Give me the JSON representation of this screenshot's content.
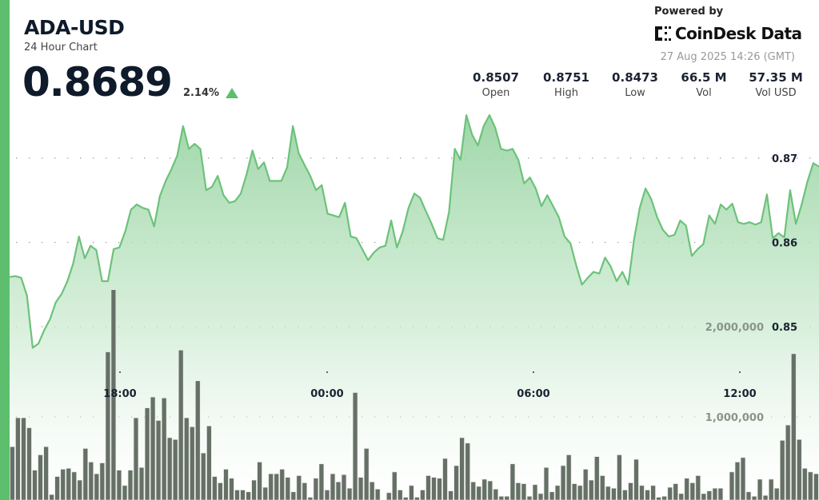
{
  "header": {
    "symbol": "ADA-USD",
    "subtitle": "24 Hour Chart",
    "price": "0.8689",
    "change_pct": "2.14%",
    "change_direction": "up",
    "powered_by": "Powered by",
    "brand": "CoinDesk Data",
    "timestamp": "27 Aug 2025 14:26 (GMT)"
  },
  "stats": [
    {
      "value": "0.8507",
      "label": "Open"
    },
    {
      "value": "0.8751",
      "label": "High"
    },
    {
      "value": "0.8473",
      "label": "Low"
    },
    {
      "value": "66.5 M",
      "label": "Vol"
    },
    {
      "value": "57.35 M",
      "label": "Vol USD"
    }
  ],
  "colors": {
    "accent": "#5dbf6d",
    "line": "#6cc27a",
    "volume": "#667066"
  },
  "chart_data": {
    "type": "area",
    "title": "",
    "price_axis": {
      "ticks": [
        "0.87",
        "0.86",
        "0.85"
      ],
      "tick_values": [
        0.87,
        0.86,
        0.85
      ],
      "grid": true
    },
    "volume_axis": {
      "ticks": [
        "2,000,000",
        "1,000,000"
      ],
      "tick_values": [
        2000000,
        1000000
      ]
    },
    "time_ticks": [
      "18:00",
      "00:00",
      "06:00",
      "12:00"
    ],
    "price": [
      0.8559,
      0.856,
      0.8558,
      0.8537,
      0.8475,
      0.848,
      0.8496,
      0.8509,
      0.8529,
      0.8539,
      0.8554,
      0.8575,
      0.8607,
      0.8581,
      0.8596,
      0.8591,
      0.8554,
      0.8554,
      0.8592,
      0.8594,
      0.8613,
      0.8639,
      0.8645,
      0.8641,
      0.8639,
      0.8619,
      0.8655,
      0.8673,
      0.8687,
      0.8703,
      0.8738,
      0.8711,
      0.8717,
      0.8711,
      0.8662,
      0.8666,
      0.8679,
      0.8656,
      0.8647,
      0.8649,
      0.8658,
      0.8681,
      0.8709,
      0.8687,
      0.8695,
      0.8673,
      0.8673,
      0.8673,
      0.8689,
      0.8738,
      0.8706,
      0.8692,
      0.8679,
      0.8662,
      0.8668,
      0.8634,
      0.8632,
      0.863,
      0.8647,
      0.8607,
      0.8605,
      0.8592,
      0.8579,
      0.8588,
      0.8594,
      0.8596,
      0.8626,
      0.8594,
      0.8613,
      0.8641,
      0.8658,
      0.8653,
      0.8637,
      0.8622,
      0.8605,
      0.8603,
      0.8636,
      0.8711,
      0.8698,
      0.8751,
      0.8728,
      0.8715,
      0.8738,
      0.8751,
      0.8736,
      0.8711,
      0.8709,
      0.8711,
      0.8698,
      0.867,
      0.8677,
      0.8664,
      0.8643,
      0.8656,
      0.8643,
      0.863,
      0.8607,
      0.8599,
      0.8573,
      0.855,
      0.8558,
      0.8565,
      0.8563,
      0.8582,
      0.8571,
      0.8554,
      0.8565,
      0.855,
      0.8603,
      0.8641,
      0.8664,
      0.8651,
      0.863,
      0.8615,
      0.8607,
      0.8609,
      0.8626,
      0.862,
      0.8584,
      0.8592,
      0.8598,
      0.8632,
      0.8622,
      0.8645,
      0.8639,
      0.8646,
      0.8624,
      0.8622,
      0.8624,
      0.8621,
      0.8624,
      0.8657,
      0.8605,
      0.8611,
      0.8606,
      0.8662,
      0.8622,
      0.8645,
      0.8672,
      0.8694,
      0.869
    ],
    "volume_millions": [
      0.67,
      0.99,
      0.99,
      0.88,
      0.41,
      0.58,
      0.67,
      0.14,
      0.34,
      0.42,
      0.43,
      0.39,
      0.3,
      0.65,
      0.5,
      0.37,
      0.49,
      1.72,
      2.41,
      0.41,
      0.24,
      0.41,
      0.99,
      0.44,
      1.1,
      1.22,
      0.96,
      1.21,
      0.77,
      0.75,
      1.74,
      0.99,
      0.89,
      1.4,
      0.6,
      0.9,
      0.34,
      0.27,
      0.42,
      0.32,
      0.19,
      0.19,
      0.17,
      0.3,
      0.5,
      0.22,
      0.37,
      0.37,
      0.42,
      0.33,
      0.17,
      0.35,
      0.27,
      0.11,
      0.32,
      0.48,
      0.19,
      0.37,
      0.28,
      0.36,
      0.21,
      1.27,
      0.33,
      0.65,
      0.28,
      0.2,
      0.04,
      0.16,
      0.39,
      0.19,
      0.11,
      0.24,
      0.11,
      0.19,
      0.35,
      0.33,
      0.32,
      0.54,
      0.18,
      0.46,
      0.77,
      0.71,
      0.28,
      0.23,
      0.31,
      0.29,
      0.2,
      0.12,
      0.12,
      0.48,
      0.27,
      0.26,
      0.12,
      0.25,
      0.15,
      0.44,
      0.17,
      0.24,
      0.46,
      0.58,
      0.26,
      0.24,
      0.42,
      0.3,
      0.56,
      0.35,
      0.23,
      0.21,
      0.58,
      0.19,
      0.27,
      0.53,
      0.24,
      0.19,
      0.24,
      0.11,
      0.12,
      0.22,
      0.26,
      0.15,
      0.32,
      0.27,
      0.35,
      0.15,
      0.18,
      0.21,
      0.21,
      0.05,
      0.39,
      0.5,
      0.55,
      0.17,
      0.12,
      0.31,
      0.13,
      0.31,
      0.21,
      0.74,
      0.91,
      1.7,
      0.75,
      0.43,
      0.39,
      0.37
    ]
  }
}
